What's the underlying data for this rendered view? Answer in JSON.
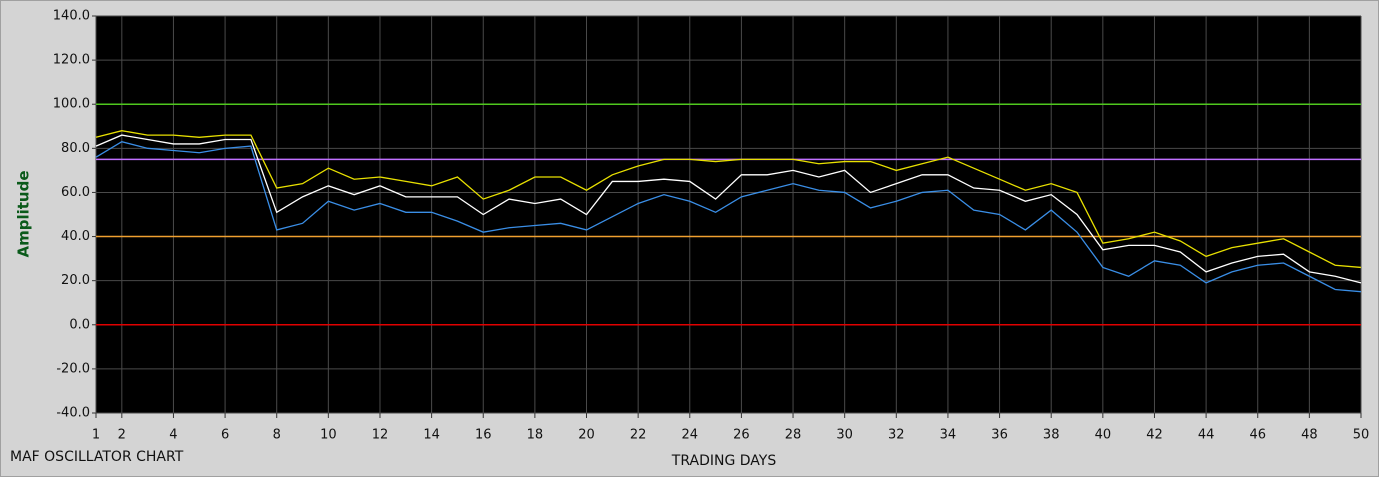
{
  "chart_data": {
    "type": "line",
    "title": "MAF OSCILLATOR CHART",
    "x_label": "TRADING DAYS",
    "y_label": "Amplitude",
    "x": [
      1,
      2,
      3,
      4,
      5,
      6,
      7,
      8,
      9,
      10,
      11,
      12,
      13,
      14,
      15,
      16,
      17,
      18,
      19,
      20,
      21,
      22,
      23,
      24,
      25,
      26,
      27,
      28,
      29,
      30,
      31,
      32,
      33,
      34,
      35,
      36,
      37,
      38,
      39,
      40,
      41,
      42,
      43,
      44,
      45,
      46,
      47,
      48,
      49,
      50
    ],
    "series": [
      {
        "color": "#e8e000",
        "values": [
          85,
          88,
          86,
          86,
          85,
          86,
          86,
          62,
          64,
          71,
          66,
          67,
          65,
          63,
          67,
          57,
          61,
          67,
          67,
          61,
          68,
          72,
          75,
          75,
          74,
          75,
          75,
          75,
          73,
          74,
          74,
          70,
          73,
          76,
          71,
          66,
          61,
          64,
          60,
          37,
          39,
          42,
          38,
          31,
          35,
          37,
          39,
          33,
          27,
          26
        ]
      },
      {
        "color": "#ffffff",
        "values": [
          81,
          86,
          84,
          82,
          82,
          84,
          84,
          51,
          58,
          63,
          59,
          63,
          58,
          58,
          58,
          50,
          57,
          55,
          57,
          50,
          65,
          65,
          66,
          65,
          57,
          68,
          68,
          70,
          67,
          70,
          60,
          64,
          68,
          68,
          62,
          61,
          56,
          59,
          50,
          34,
          36,
          36,
          33,
          24,
          28,
          31,
          32,
          24,
          22,
          19
        ]
      },
      {
        "color": "#3a8ee6",
        "values": [
          76,
          83,
          80,
          79,
          78,
          80,
          81,
          43,
          46,
          56,
          52,
          55,
          51,
          51,
          47,
          42,
          44,
          45,
          46,
          43,
          49,
          55,
          59,
          56,
          51,
          58,
          61,
          64,
          61,
          60,
          53,
          56,
          60,
          61,
          52,
          50,
          43,
          52,
          42,
          26,
          22,
          29,
          27,
          19,
          24,
          27,
          28,
          22,
          16,
          15
        ]
      }
    ],
    "reference_lines": [
      {
        "value": 100,
        "color": "#4fc81e"
      },
      {
        "value": 75,
        "color": "#c070ff"
      },
      {
        "value": 40,
        "color": "#f0a030"
      },
      {
        "value": 0,
        "color": "#e00000"
      }
    ],
    "xlim": [
      1,
      50
    ],
    "xticks": [
      1,
      2,
      4,
      6,
      8,
      10,
      12,
      14,
      16,
      18,
      20,
      22,
      24,
      26,
      28,
      30,
      32,
      34,
      36,
      38,
      40,
      42,
      44,
      46,
      48,
      50
    ],
    "ylim": [
      -40,
      140
    ],
    "yticks": [
      {
        "value": -40,
        "label": "-40.0"
      },
      {
        "value": -20,
        "label": "-20.0"
      },
      {
        "value": 0,
        "label": "0.0"
      },
      {
        "value": 20,
        "label": "20.0"
      },
      {
        "value": 40,
        "label": "40.0"
      },
      {
        "value": 60,
        "label": "60.0"
      },
      {
        "value": 80,
        "label": "80.0"
      },
      {
        "value": 100,
        "label": "100.0"
      },
      {
        "value": 120,
        "label": "120.0"
      },
      {
        "value": 140,
        "label": "140.0"
      }
    ],
    "grid": true
  }
}
